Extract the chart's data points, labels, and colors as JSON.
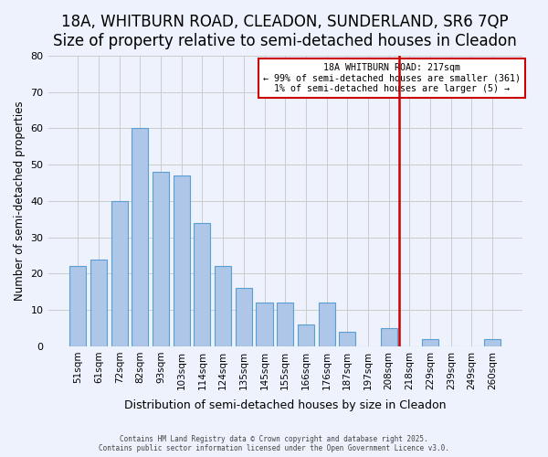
{
  "title": "18A, WHITBURN ROAD, CLEADON, SUNDERLAND, SR6 7QP",
  "subtitle": "Size of property relative to semi-detached houses in Cleadon",
  "xlabel": "Distribution of semi-detached houses by size in Cleadon",
  "ylabel": "Number of semi-detached properties",
  "bar_labels": [
    "51sqm",
    "61sqm",
    "72sqm",
    "82sqm",
    "93sqm",
    "103sqm",
    "114sqm",
    "124sqm",
    "135sqm",
    "145sqm",
    "155sqm",
    "166sqm",
    "176sqm",
    "187sqm",
    "197sqm",
    "208sqm",
    "218sqm",
    "229sqm",
    "239sqm",
    "249sqm",
    "260sqm"
  ],
  "bar_heights": [
    22,
    24,
    40,
    60,
    48,
    47,
    34,
    22,
    16,
    12,
    12,
    6,
    12,
    4,
    0,
    5,
    0,
    2,
    0,
    0,
    2
  ],
  "bar_color": "#aec6e8",
  "bar_edge_color": "#5a9fd4",
  "vline_index": 16,
  "vline_color": "#cc0000",
  "annotation_title": "18A WHITBURN ROAD: 217sqm",
  "annotation_line1": "← 99% of semi-detached houses are smaller (361)",
  "annotation_line2": "1% of semi-detached houses are larger (5) →",
  "annotation_box_color": "#cc0000",
  "ylim": [
    0,
    80
  ],
  "yticks": [
    0,
    10,
    20,
    30,
    40,
    50,
    60,
    70,
    80
  ],
  "grid_color": "#cccccc",
  "background_color": "#eef2fc",
  "footer_line1": "Contains HM Land Registry data © Crown copyright and database right 2025.",
  "footer_line2": "Contains public sector information licensed under the Open Government Licence v3.0.",
  "title_fontsize": 12,
  "subtitle_fontsize": 10
}
